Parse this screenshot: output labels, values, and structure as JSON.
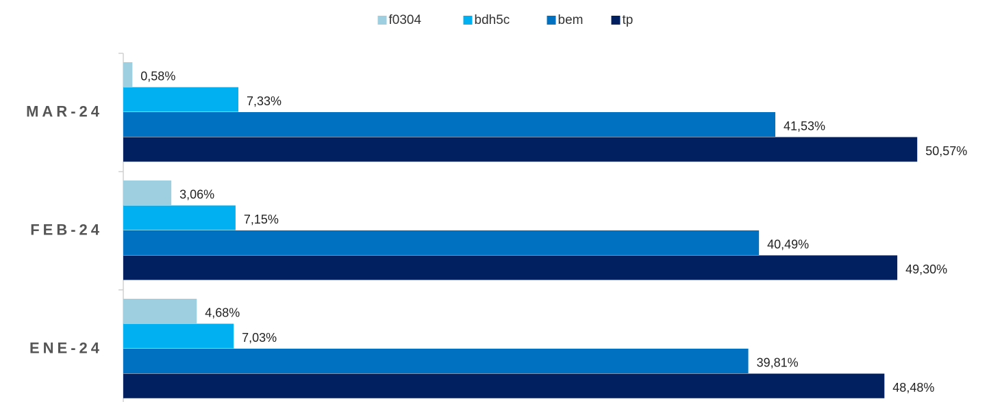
{
  "chart_data": {
    "type": "bar",
    "orientation": "horizontal",
    "categories": [
      "MAR-24",
      "FEB-24",
      "ENE-24"
    ],
    "series": [
      {
        "name": "f0304",
        "color": "#9ecfe0",
        "values": [
          0.58,
          3.06,
          4.68
        ],
        "labels": [
          "0,58%",
          "3,06%",
          "4,68%"
        ]
      },
      {
        "name": "bdh5c",
        "color": "#00b0f0",
        "values": [
          7.33,
          7.15,
          7.03
        ],
        "labels": [
          "7,33%",
          "7,15%",
          "7,03%"
        ]
      },
      {
        "name": "bem",
        "color": "#0070c0",
        "values": [
          41.53,
          40.49,
          39.81
        ],
        "labels": [
          "41,53%",
          "40,49%",
          "39,81%"
        ]
      },
      {
        "name": "tp",
        "color": "#002060",
        "values": [
          50.57,
          49.3,
          48.48
        ],
        "labels": [
          "50,57%",
          "49,30%",
          "48,48%"
        ]
      }
    ],
    "xlim": [
      0,
      52
    ],
    "grid": false,
    "legend": "top-center",
    "title": "",
    "xlabel": "",
    "ylabel": ""
  }
}
